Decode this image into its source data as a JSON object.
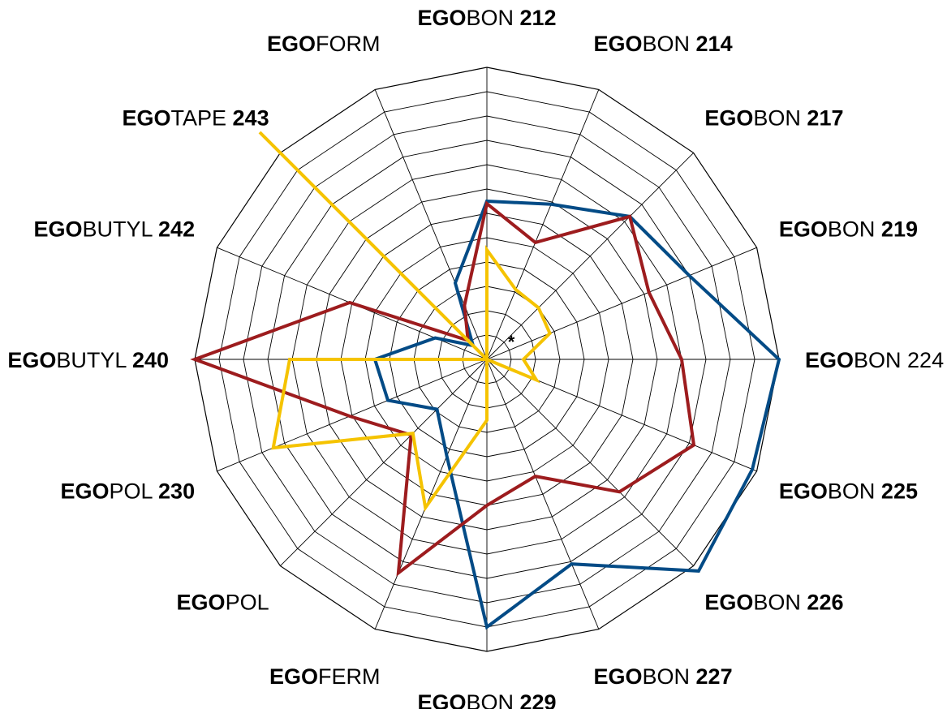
{
  "chart_data": {
    "type": "radar",
    "axes": [
      {
        "label": "EGOBON 212",
        "parts": [
          {
            "text": "EGO",
            "bold": true
          },
          {
            "text": "BON ",
            "bold": false
          },
          {
            "text": "212",
            "bold": true
          }
        ]
      },
      {
        "label": "EGOBON 214",
        "parts": [
          {
            "text": "EGO",
            "bold": true
          },
          {
            "text": "BON ",
            "bold": false
          },
          {
            "text": "214",
            "bold": true
          }
        ]
      },
      {
        "label": "EGOBON 217",
        "parts": [
          {
            "text": "EGO",
            "bold": true
          },
          {
            "text": "BON ",
            "bold": false
          },
          {
            "text": "217",
            "bold": true
          }
        ]
      },
      {
        "label": "EGOBON 219",
        "parts": [
          {
            "text": "EGO",
            "bold": true
          },
          {
            "text": "BON ",
            "bold": false
          },
          {
            "text": "219",
            "bold": true
          }
        ]
      },
      {
        "label": "EGOBON 224",
        "parts": [
          {
            "text": "EGO",
            "bold": true
          },
          {
            "text": "BON ",
            "bold": false
          },
          {
            "text": "224",
            "bold": false
          }
        ]
      },
      {
        "label": "EGOBON 225",
        "parts": [
          {
            "text": "EGO",
            "bold": true
          },
          {
            "text": "BON ",
            "bold": false
          },
          {
            "text": "225",
            "bold": true
          }
        ]
      },
      {
        "label": "EGOBON 226",
        "parts": [
          {
            "text": "EGO",
            "bold": true
          },
          {
            "text": "BON ",
            "bold": false
          },
          {
            "text": "226",
            "bold": true
          }
        ]
      },
      {
        "label": "EGOBON 227",
        "parts": [
          {
            "text": "EGO",
            "bold": true
          },
          {
            "text": "BON ",
            "bold": false
          },
          {
            "text": "227",
            "bold": true
          }
        ]
      },
      {
        "label": "EGOBON 229",
        "parts": [
          {
            "text": "EGO",
            "bold": true
          },
          {
            "text": "BON ",
            "bold": false
          },
          {
            "text": "229",
            "bold": true
          }
        ]
      },
      {
        "label": "EGOFERM",
        "parts": [
          {
            "text": "EGO",
            "bold": true
          },
          {
            "text": "FERM",
            "bold": false
          }
        ]
      },
      {
        "label": "EGOPOL",
        "parts": [
          {
            "text": "EGO",
            "bold": true
          },
          {
            "text": "POL",
            "bold": false
          }
        ]
      },
      {
        "label": "EGOPOL 230",
        "parts": [
          {
            "text": "EGO",
            "bold": true
          },
          {
            "text": "POL ",
            "bold": false
          },
          {
            "text": "230",
            "bold": true
          }
        ]
      },
      {
        "label": "EGOBUTYL 240",
        "parts": [
          {
            "text": "EGO",
            "bold": true
          },
          {
            "text": "BUTYL ",
            "bold": false
          },
          {
            "text": "240",
            "bold": true
          }
        ]
      },
      {
        "label": "EGOBUTYL 242",
        "parts": [
          {
            "text": "EGO",
            "bold": true
          },
          {
            "text": "BUTYL ",
            "bold": false
          },
          {
            "text": "242",
            "bold": true
          }
        ]
      },
      {
        "label": "EGOTAPE 243",
        "parts": [
          {
            "text": "EGO",
            "bold": true
          },
          {
            "text": "TAPE ",
            "bold": false
          },
          {
            "text": "243",
            "bold": true
          }
        ]
      },
      {
        "label": "EGOFORM",
        "parts": [
          {
            "text": "EGO",
            "bold": true
          },
          {
            "text": "FORM",
            "bold": false
          }
        ]
      }
    ],
    "rlim": [
      0,
      12
    ],
    "rings": 12,
    "grid": true,
    "center_marker": "*",
    "series": [
      {
        "color": "#034b86",
        "values": [
          6.5,
          6.9,
          8.3,
          9.0,
          12.0,
          11.8,
          12.3,
          9.1,
          11.0,
          4.3,
          2.9,
          4.4,
          4.6,
          2.3,
          0.8,
          3.4
        ]
      },
      {
        "color": "#9d1c1e",
        "values": [
          6.4,
          5.2,
          8.3,
          7.2,
          8.0,
          9.2,
          7.7,
          5.2,
          6.0,
          9.5,
          4.4,
          6.1,
          12.0,
          6.1,
          1.1,
          2.4
        ]
      },
      {
        "color": "#f5c300",
        "values": [
          4.5,
          3.1,
          3.0,
          2.8,
          1.5,
          2.2,
          0.0,
          0.0,
          2.5,
          6.6,
          4.3,
          9.5,
          8.1,
          0.0,
          13.2,
          0.0
        ]
      }
    ]
  }
}
